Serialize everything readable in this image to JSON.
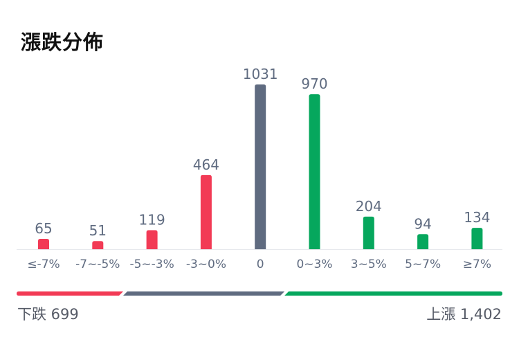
{
  "title": "漲跌分佈",
  "colors": {
    "down": "#f23a55",
    "flat": "#5f6b80",
    "up": "#06a75d",
    "label": "#5f6b80",
    "axis": "#e6e8ec"
  },
  "chart_data": {
    "type": "bar",
    "categories": [
      "≤-7%",
      "-7~-5%",
      "-5~-3%",
      "-3~0%",
      "0",
      "0~3%",
      "3~5%",
      "5~7%",
      "≥7%"
    ],
    "values": [
      65,
      51,
      119,
      464,
      1031,
      970,
      204,
      94,
      134
    ],
    "bar_colors": [
      "down",
      "down",
      "down",
      "down",
      "flat",
      "up",
      "up",
      "up",
      "up"
    ],
    "title": "漲跌分佈",
    "xlabel": "",
    "ylabel": "",
    "ylim": [
      0,
      1031
    ],
    "grid": false
  },
  "summary": {
    "down_label": "下跌 699",
    "up_label": "上漲 1,402",
    "down_count": 699,
    "flat_count": 1031,
    "up_count": 1402
  }
}
